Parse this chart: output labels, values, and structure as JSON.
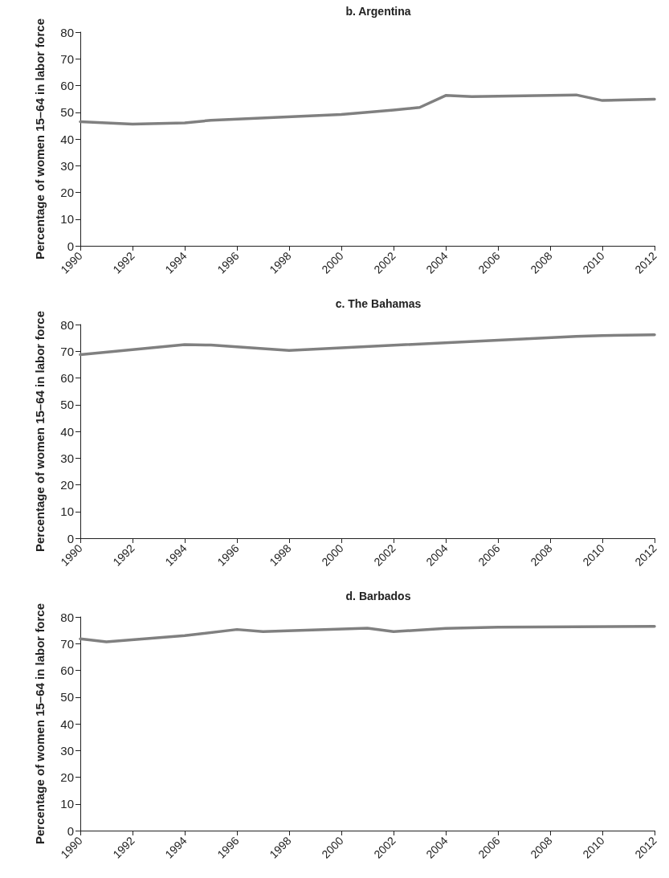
{
  "chart_data": [
    {
      "type": "line",
      "title": "b. Argentina",
      "ylabel": "Percentage of women 15–64 in labor force",
      "xlim": [
        1990,
        2012
      ],
      "xticks": [
        1990,
        1992,
        1994,
        1996,
        1998,
        2000,
        2002,
        2004,
        2006,
        2008,
        2010,
        2012
      ],
      "ylim": [
        0,
        80
      ],
      "yticks": [
        0,
        10,
        20,
        30,
        40,
        50,
        60,
        70,
        80
      ],
      "marker": "none",
      "line_style": "solid",
      "series": [
        {
          "color": "#808080",
          "x": [
            1990,
            1992,
            1994,
            1995,
            2000,
            2002,
            2003,
            2004,
            2005,
            2009,
            2010,
            2012
          ],
          "values": [
            46.5,
            45.6,
            46,
            47,
            49.2,
            50.8,
            51.8,
            56.3,
            55.9,
            56.5,
            54.4,
            54.9
          ]
        }
      ]
    },
    {
      "type": "line",
      "title": "c. The Bahamas",
      "ylabel": "Percentage of women 15–64 in labor force",
      "xlim": [
        1990,
        2012
      ],
      "xticks": [
        1990,
        1992,
        1994,
        1996,
        1998,
        2000,
        2002,
        2004,
        2006,
        2008,
        2010,
        2012
      ],
      "ylim": [
        0,
        80
      ],
      "yticks": [
        0,
        10,
        20,
        30,
        40,
        50,
        60,
        70,
        80
      ],
      "marker": "none",
      "line_style": "solid",
      "series": [
        {
          "color": "#808080",
          "x": [
            1990,
            1994,
            1995,
            1998,
            2009,
            2010,
            2012
          ],
          "values": [
            68.7,
            72.5,
            72.3,
            70.3,
            75.6,
            75.9,
            76.2
          ]
        }
      ]
    },
    {
      "type": "line",
      "title": "d. Barbados",
      "ylabel": "Percentage of women 15–64 in labor force",
      "xlim": [
        1990,
        2012
      ],
      "xticks": [
        1990,
        1992,
        1994,
        1996,
        1998,
        2000,
        2002,
        2004,
        2006,
        2008,
        2010,
        2012
      ],
      "ylim": [
        0,
        80
      ],
      "yticks": [
        0,
        10,
        20,
        30,
        40,
        50,
        60,
        70,
        80
      ],
      "marker": "none",
      "line_style": "solid",
      "series": [
        {
          "color": "#808080",
          "x": [
            1990,
            1991,
            1994,
            1996,
            1997,
            2001,
            2002,
            2004,
            2006,
            2012
          ],
          "values": [
            71.8,
            70.7,
            73,
            75.3,
            74.5,
            75.8,
            74.5,
            75.7,
            76.2,
            76.5
          ]
        }
      ]
    }
  ]
}
